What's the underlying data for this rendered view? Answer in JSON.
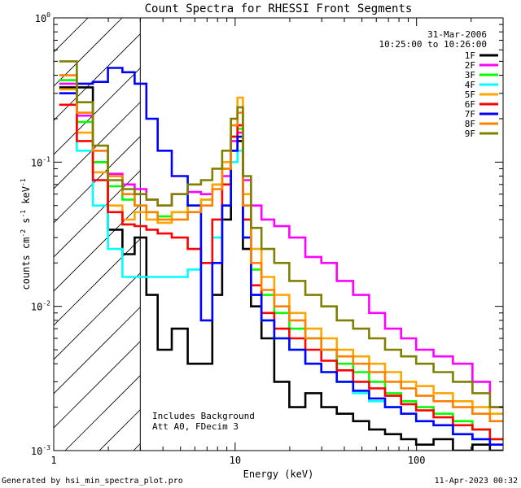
{
  "chart_data": {
    "type": "line",
    "title": "Count Spectra for RHESSI Front Segments",
    "xlabel": "Energy (keV)",
    "ylabel": "counts cm",
    "ylabel_exp1": "-2",
    "ylabel_mid": " s",
    "ylabel_exp2": "-1",
    "ylabel_end": " keV",
    "ylabel_exp3": "-1",
    "x_scale": "log",
    "y_scale": "log",
    "xlim": [
      1,
      300
    ],
    "ylim": [
      0.001,
      1
    ],
    "x_tick_labels": [
      {
        "v": 1,
        "label": "1"
      },
      {
        "v": 10,
        "label": "10"
      },
      {
        "v": 100,
        "label": "100"
      }
    ],
    "y_tick_labels": [
      {
        "v": 1,
        "base": "10",
        "exp": "0"
      },
      {
        "v": 0.1,
        "base": "10",
        "exp": "-1"
      },
      {
        "v": 0.01,
        "base": "10",
        "exp": "-2"
      },
      {
        "v": 0.001,
        "base": "10",
        "exp": "-3"
      }
    ],
    "excluded_region": {
      "from": 1,
      "to": 3
    },
    "date": "31-Mar-2006",
    "time_range": "10:25:00 to 10:26:00",
    "annotation_lines": [
      "Includes Background",
      "Att A0, FDecim 3"
    ],
    "footer_left": "Generated by hsi_min_spectra_plot.pro",
    "footer_right": "11-Apr-2023 00:32",
    "legend_position": "top-right",
    "series": [
      {
        "name": "1F",
        "color": "#000000",
        "x": [
          1.2,
          1.5,
          1.8,
          2.2,
          2.6,
          3.0,
          3.5,
          4.0,
          5.0,
          6.0,
          7.0,
          8.0,
          9.0,
          10.0,
          10.6,
          11.5,
          13,
          15,
          18,
          22,
          27,
          33,
          40,
          50,
          60,
          75,
          90,
          110,
          140,
          180,
          230,
          280
        ],
        "y": [
          0.33,
          0.33,
          0.1,
          0.034,
          0.023,
          0.03,
          0.012,
          0.005,
          0.007,
          0.004,
          0.004,
          0.012,
          0.04,
          0.12,
          0.14,
          0.025,
          0.01,
          0.006,
          0.003,
          0.002,
          0.0025,
          0.002,
          0.0018,
          0.0016,
          0.0014,
          0.0013,
          0.0012,
          0.0011,
          0.0012,
          0.001,
          0.0011,
          0.001
        ]
      },
      {
        "name": "2F",
        "color": "#ff00ff",
        "x": [
          1.2,
          1.5,
          1.8,
          2.2,
          2.6,
          3.0,
          3.5,
          4.0,
          5.0,
          6.0,
          7.0,
          8.0,
          9.0,
          10.0,
          10.6,
          11.5,
          13,
          15,
          18,
          22,
          27,
          33,
          40,
          50,
          60,
          75,
          90,
          110,
          140,
          180,
          230,
          280
        ],
        "y": [
          0.35,
          0.21,
          0.12,
          0.083,
          0.07,
          0.065,
          0.055,
          0.05,
          0.06,
          0.062,
          0.06,
          0.07,
          0.08,
          0.14,
          0.16,
          0.075,
          0.05,
          0.04,
          0.036,
          0.03,
          0.022,
          0.02,
          0.015,
          0.012,
          0.009,
          0.007,
          0.006,
          0.005,
          0.0045,
          0.004,
          0.003,
          0.002
        ]
      },
      {
        "name": "3F",
        "color": "#00ff00",
        "x": [
          1.2,
          1.5,
          1.8,
          2.2,
          2.6,
          3.0,
          3.5,
          4.0,
          5.0,
          6.0,
          7.0,
          8.0,
          9.0,
          10.0,
          10.6,
          11.5,
          13,
          15,
          18,
          22,
          27,
          33,
          40,
          50,
          60,
          75,
          90,
          110,
          140,
          180,
          230,
          280
        ],
        "y": [
          0.37,
          0.19,
          0.1,
          0.068,
          0.055,
          0.05,
          0.045,
          0.042,
          0.045,
          0.05,
          0.055,
          0.07,
          0.09,
          0.15,
          0.17,
          0.05,
          0.018,
          0.012,
          0.009,
          0.007,
          0.006,
          0.005,
          0.004,
          0.0035,
          0.003,
          0.0025,
          0.0022,
          0.002,
          0.0018,
          0.0016,
          0.0014,
          0.0012
        ]
      },
      {
        "name": "4F",
        "color": "#00ffff",
        "x": [
          1.2,
          1.5,
          1.8,
          2.2,
          2.6,
          3.0,
          3.5,
          4.0,
          5.0,
          6.0,
          7.0,
          8.0,
          9.0,
          10.0,
          10.6,
          11.5,
          13,
          15,
          18,
          22,
          27,
          33,
          40,
          50,
          60,
          75,
          90,
          110,
          140,
          180,
          230,
          280
        ],
        "y": [
          0.3,
          0.12,
          0.05,
          0.025,
          0.016,
          0.016,
          0.016,
          0.016,
          0.016,
          0.018,
          0.02,
          0.03,
          0.05,
          0.1,
          0.12,
          0.03,
          0.012,
          0.008,
          0.006,
          0.005,
          0.004,
          0.0035,
          0.003,
          0.0025,
          0.0022,
          0.002,
          0.0018,
          0.0016,
          0.0015,
          0.0013,
          0.0012,
          0.0011
        ]
      },
      {
        "name": "5F",
        "color": "#ffa500",
        "x": [
          1.2,
          1.5,
          1.8,
          2.2,
          2.6,
          3.0,
          3.5,
          4.0,
          5.0,
          6.0,
          7.0,
          8.0,
          9.0,
          10.0,
          10.6,
          11.5,
          13,
          15,
          18,
          22,
          27,
          33,
          40,
          50,
          60,
          75,
          90,
          110,
          140,
          180,
          230,
          280
        ],
        "y": [
          0.32,
          0.16,
          0.085,
          0.05,
          0.04,
          0.045,
          0.04,
          0.038,
          0.045,
          0.05,
          0.055,
          0.07,
          0.1,
          0.2,
          0.28,
          0.06,
          0.025,
          0.016,
          0.012,
          0.009,
          0.007,
          0.006,
          0.005,
          0.0045,
          0.004,
          0.0035,
          0.003,
          0.0028,
          0.0025,
          0.0022,
          0.002,
          0.0018
        ]
      },
      {
        "name": "6F",
        "color": "#ff0000",
        "x": [
          1.2,
          1.5,
          1.8,
          2.2,
          2.6,
          3.0,
          3.5,
          4.0,
          5.0,
          6.0,
          7.0,
          8.0,
          9.0,
          10.0,
          10.6,
          11.5,
          13,
          15,
          18,
          22,
          27,
          33,
          40,
          50,
          60,
          75,
          90,
          110,
          140,
          180,
          230,
          280
        ],
        "y": [
          0.25,
          0.14,
          0.075,
          0.045,
          0.037,
          0.036,
          0.034,
          0.032,
          0.03,
          0.025,
          0.02,
          0.04,
          0.07,
          0.15,
          0.18,
          0.04,
          0.014,
          0.009,
          0.007,
          0.006,
          0.005,
          0.0042,
          0.0036,
          0.003,
          0.0027,
          0.0024,
          0.0021,
          0.0019,
          0.0017,
          0.0015,
          0.0014,
          0.0012
        ]
      },
      {
        "name": "7F",
        "color": "#0000ff",
        "x": [
          1.2,
          1.5,
          1.8,
          2.2,
          2.6,
          3.0,
          3.5,
          4.0,
          5.0,
          6.0,
          7.0,
          8.0,
          9.0,
          10.0,
          10.6,
          11.5,
          13,
          15,
          18,
          22,
          27,
          33,
          40,
          50,
          60,
          75,
          90,
          110,
          140,
          180,
          230,
          280
        ],
        "y": [
          0.3,
          0.35,
          0.36,
          0.45,
          0.42,
          0.35,
          0.2,
          0.12,
          0.08,
          0.05,
          0.008,
          0.02,
          0.05,
          0.12,
          0.15,
          0.03,
          0.012,
          0.008,
          0.006,
          0.005,
          0.004,
          0.0035,
          0.003,
          0.0026,
          0.0023,
          0.002,
          0.0018,
          0.0016,
          0.0015,
          0.0013,
          0.0012,
          0.0011
        ]
      },
      {
        "name": "8F",
        "color": "#ff8000",
        "x": [
          1.2,
          1.5,
          1.8,
          2.2,
          2.6,
          3.0,
          3.5,
          4.0,
          5.0,
          6.0,
          7.0,
          8.0,
          9.0,
          10.0,
          10.6,
          11.5,
          13,
          15,
          18,
          22,
          27,
          33,
          40,
          50,
          60,
          75,
          90,
          110,
          140,
          180,
          230,
          280
        ],
        "y": [
          0.4,
          0.22,
          0.12,
          0.08,
          0.06,
          0.05,
          0.045,
          0.04,
          0.04,
          0.045,
          0.05,
          0.065,
          0.09,
          0.18,
          0.22,
          0.05,
          0.02,
          0.013,
          0.01,
          0.008,
          0.006,
          0.005,
          0.0045,
          0.004,
          0.0035,
          0.003,
          0.0027,
          0.0024,
          0.0022,
          0.002,
          0.0018,
          0.0016
        ]
      },
      {
        "name": "9F",
        "color": "#808000",
        "x": [
          1.2,
          1.5,
          1.8,
          2.2,
          2.6,
          3.0,
          3.5,
          4.0,
          5.0,
          6.0,
          7.0,
          8.0,
          9.0,
          10.0,
          10.6,
          11.5,
          13,
          15,
          18,
          22,
          27,
          33,
          40,
          50,
          60,
          75,
          90,
          110,
          140,
          180,
          230,
          280
        ],
        "y": [
          0.5,
          0.26,
          0.13,
          0.075,
          0.065,
          0.06,
          0.055,
          0.05,
          0.06,
          0.07,
          0.075,
          0.09,
          0.12,
          0.2,
          0.24,
          0.08,
          0.035,
          0.025,
          0.02,
          0.015,
          0.012,
          0.01,
          0.008,
          0.007,
          0.006,
          0.005,
          0.0045,
          0.004,
          0.0035,
          0.003,
          0.0025,
          0.002
        ]
      }
    ]
  }
}
